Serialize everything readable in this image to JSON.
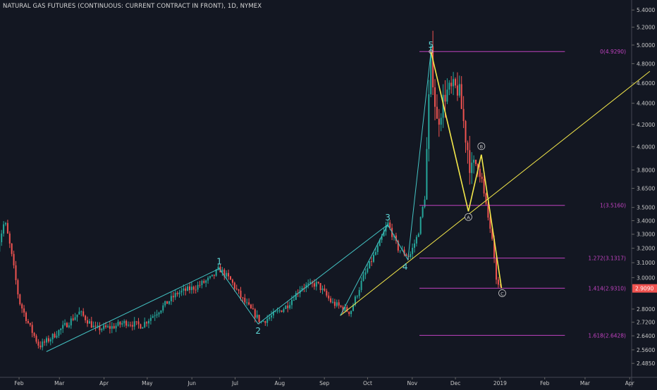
{
  "chart_data": {
    "type": "candlestick",
    "title": "NATURAL GAS FUTURES (CONTINUOUS: CURRENT CONTRACT IN FRONT), 1D, NYMEX",
    "x_tick_labels": [
      "Feb",
      "Mar",
      "Apr",
      "May",
      "Jun",
      "Jul",
      "Aug",
      "Sep",
      "Oct",
      "Nov",
      "Dec",
      "2019",
      "Feb",
      "Mar",
      "Apr"
    ],
    "y_tick_labels": [
      "5.4000",
      "5.2000",
      "5.0000",
      "4.8000",
      "4.6000",
      "4.4000",
      "4.2000",
      "4.0000",
      "3.8000",
      "3.6500",
      "3.5000",
      "3.4000",
      "3.3000",
      "3.2000",
      "3.1000",
      "3.0000",
      "2.8000",
      "2.7200",
      "2.6400",
      "2.5600",
      "2.4850"
    ],
    "y_scale": "log",
    "last_price_label": "2.9090",
    "price_path": [
      {
        "date": "2018-01-17",
        "price": 3.2
      },
      {
        "date": "2018-01-22",
        "price": 3.4
      },
      {
        "date": "2018-01-26",
        "price": 3.2
      },
      {
        "date": "2018-02-01",
        "price": 2.85
      },
      {
        "date": "2018-02-08",
        "price": 2.7
      },
      {
        "date": "2018-02-15",
        "price": 2.58
      },
      {
        "date": "2018-02-22",
        "price": 2.62
      },
      {
        "date": "2018-03-05",
        "price": 2.7
      },
      {
        "date": "2018-03-15",
        "price": 2.78
      },
      {
        "date": "2018-03-26",
        "price": 2.68
      },
      {
        "date": "2018-04-06",
        "price": 2.69
      },
      {
        "date": "2018-04-16",
        "price": 2.72
      },
      {
        "date": "2018-04-27",
        "price": 2.7
      },
      {
        "date": "2018-05-10",
        "price": 2.8
      },
      {
        "date": "2018-05-22",
        "price": 2.9
      },
      {
        "date": "2018-06-04",
        "price": 2.94
      },
      {
        "date": "2018-06-15",
        "price": 3.0
      },
      {
        "date": "2018-06-20",
        "price": 3.06
      },
      {
        "date": "2018-06-28",
        "price": 2.98
      },
      {
        "date": "2018-07-06",
        "price": 2.86
      },
      {
        "date": "2018-07-19",
        "price": 2.72
      },
      {
        "date": "2018-07-27",
        "price": 2.76
      },
      {
        "date": "2018-08-06",
        "price": 2.82
      },
      {
        "date": "2018-08-16",
        "price": 2.94
      },
      {
        "date": "2018-08-27",
        "price": 2.96
      },
      {
        "date": "2018-09-06",
        "price": 2.84
      },
      {
        "date": "2018-09-19",
        "price": 2.78
      },
      {
        "date": "2018-09-28",
        "price": 3.0
      },
      {
        "date": "2018-10-08",
        "price": 3.2
      },
      {
        "date": "2018-10-15",
        "price": 3.38
      },
      {
        "date": "2018-10-22",
        "price": 3.2
      },
      {
        "date": "2018-10-30",
        "price": 3.14
      },
      {
        "date": "2018-11-05",
        "price": 3.3
      },
      {
        "date": "2018-11-10",
        "price": 3.6
      },
      {
        "date": "2018-11-14",
        "price": 4.9
      },
      {
        "date": "2018-11-18",
        "price": 4.2
      },
      {
        "date": "2018-11-24",
        "price": 4.5
      },
      {
        "date": "2018-12-03",
        "price": 4.55
      },
      {
        "date": "2018-12-08",
        "price": 4.1
      },
      {
        "date": "2018-12-12",
        "price": 3.78
      },
      {
        "date": "2018-12-17",
        "price": 3.9
      },
      {
        "date": "2018-12-20",
        "price": 3.65
      },
      {
        "date": "2018-12-24",
        "price": 3.4
      },
      {
        "date": "2018-12-26",
        "price": 3.3
      },
      {
        "date": "2018-12-28",
        "price": 3.1
      },
      {
        "date": "2018-12-30",
        "price": 2.95
      },
      {
        "date": "2019-01-02",
        "price": 2.93
      }
    ],
    "fibonacci_levels": [
      {
        "ratio_label": "0",
        "value_label": "(4.9290)",
        "price": 4.929
      },
      {
        "ratio_label": "1",
        "value_label": "(3.5160)",
        "price": 3.516
      },
      {
        "ratio_label": "1.272",
        "value_label": "(3.1317)",
        "price": 3.1317
      },
      {
        "ratio_label": "1.414",
        "value_label": "(2.9310)",
        "price": 2.931
      },
      {
        "ratio_label": "1.618",
        "value_label": "(2.6428)",
        "price": 2.6428
      }
    ],
    "impulse_wave": [
      {
        "label": "",
        "date": "2018-02-20",
        "price": 2.55
      },
      {
        "label": "1",
        "date": "2018-06-20",
        "price": 3.06
      },
      {
        "label": "2",
        "date": "2018-07-17",
        "price": 2.71
      },
      {
        "label": "3",
        "date": "2018-10-15",
        "price": 3.37
      },
      {
        "label": "4",
        "date": "2018-10-29",
        "price": 3.12
      },
      {
        "label": "5",
        "date": "2018-11-14",
        "price": 4.929
      }
    ],
    "correction_wave": [
      {
        "label": "",
        "date": "2018-11-14",
        "price": 4.929
      },
      {
        "label": "A",
        "date": "2018-12-10",
        "price": 3.47
      },
      {
        "label": "B",
        "date": "2018-12-19",
        "price": 3.93
      },
      {
        "label": "C",
        "date": "2019-01-02",
        "price": 2.931
      }
    ],
    "trendlines": [
      {
        "from": {
          "date": "2018-09-12",
          "price": 2.76
        },
        "to": {
          "date": "2019-04-15",
          "price": 4.72
        }
      },
      {
        "from": {
          "date": "2018-09-12",
          "price": 2.76
        },
        "to": {
          "date": "2018-10-15",
          "price": 3.37
        }
      }
    ],
    "colors": {
      "background": "#131722",
      "up": "#26a69a",
      "down": "#ef5350",
      "wave": "#44c4c4",
      "correction": "#f5e94b",
      "fib": "#c042c0",
      "label_text": "#5ed7d7"
    }
  }
}
